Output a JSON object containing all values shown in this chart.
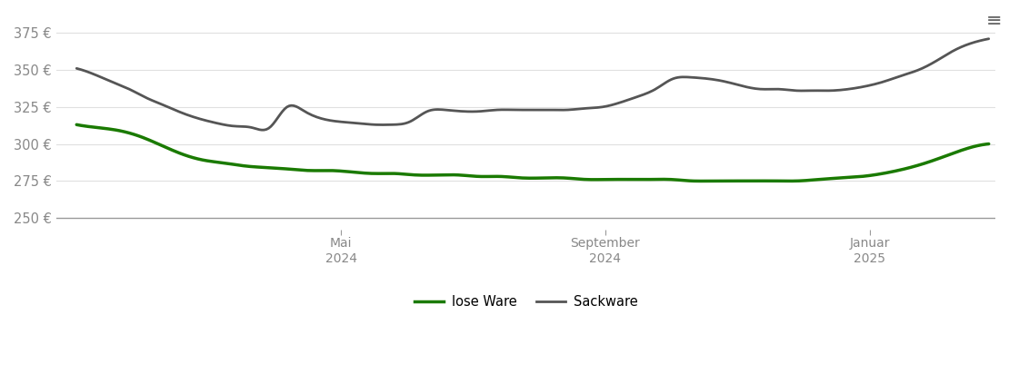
{
  "background_color": "#ffffff",
  "y_ticks": [
    250,
    275,
    300,
    325,
    350,
    375
  ],
  "y_labels": [
    "250 €",
    "275 €",
    "300 €",
    "325 €",
    "350 €",
    "375 €"
  ],
  "ylim": [
    242,
    388
  ],
  "legend_labels": [
    "lose Ware",
    "Sackware"
  ],
  "legend_colors": [
    "#1a7a00",
    "#555555"
  ],
  "lose_ware": [
    313,
    311,
    309,
    305,
    299,
    293,
    289,
    287,
    285,
    284,
    283,
    282,
    282,
    281,
    280,
    280,
    279,
    279,
    279,
    278,
    278,
    277,
    277,
    277,
    276,
    276,
    276,
    276,
    276,
    275,
    275,
    275,
    275,
    275,
    275,
    276,
    277,
    278,
    280,
    283,
    287,
    292,
    297,
    300
  ],
  "sackware": [
    351,
    347,
    342,
    337,
    331,
    326,
    321,
    317,
    314,
    312,
    311,
    311,
    325,
    322,
    317,
    315,
    314,
    313,
    313,
    315,
    322,
    323,
    322,
    322,
    323,
    323,
    323,
    323,
    323,
    324,
    325,
    328,
    332,
    337,
    344,
    345,
    344,
    342,
    339,
    337,
    337,
    336,
    336,
    336,
    337,
    339,
    342,
    346,
    350,
    356,
    363,
    368,
    371
  ],
  "total_months": 13.8,
  "x_tick_months": [
    4.0,
    8.0,
    12.0
  ],
  "x_tick_labels": [
    "Mai\n2024",
    "September\n2024",
    "Januar\n2025"
  ],
  "menu_char": "≡"
}
